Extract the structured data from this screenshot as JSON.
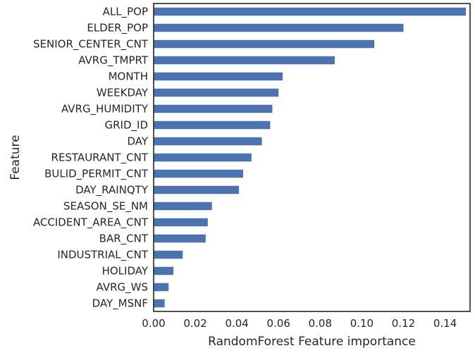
{
  "chart_data": {
    "type": "bar",
    "orientation": "horizontal",
    "xlabel": "RandomForest Feature importance",
    "ylabel": "Feature",
    "xlim": [
      0.0,
      0.152
    ],
    "xticks": [
      "0.00",
      "0.02",
      "0.04",
      "0.06",
      "0.08",
      "0.10",
      "0.12",
      "0.14"
    ],
    "grid": false,
    "color": "#4c72b0",
    "categories": [
      "ALL_POP",
      "ELDER_POP",
      "SENIOR_CENTER_CNT",
      "AVRG_TMPRT",
      "MONTH",
      "WEEKDAY",
      "AVRG_HUMIDITY",
      "GRID_ID",
      "DAY",
      "RESTAURANT_CNT",
      "BULID_PERMIT_CNT",
      "DAY_RAINQTY",
      "SEASON_SE_NM",
      "ACCIDENT_AREA_CNT",
      "BAR_CNT",
      "INDUSTRIAL_CNT",
      "HOLIDAY",
      "AVRG_WS",
      "DAY_MSNF"
    ],
    "values": [
      0.15,
      0.12,
      0.106,
      0.087,
      0.062,
      0.06,
      0.057,
      0.056,
      0.052,
      0.047,
      0.043,
      0.041,
      0.028,
      0.026,
      0.025,
      0.014,
      0.0095,
      0.0072,
      0.0053
    ]
  }
}
